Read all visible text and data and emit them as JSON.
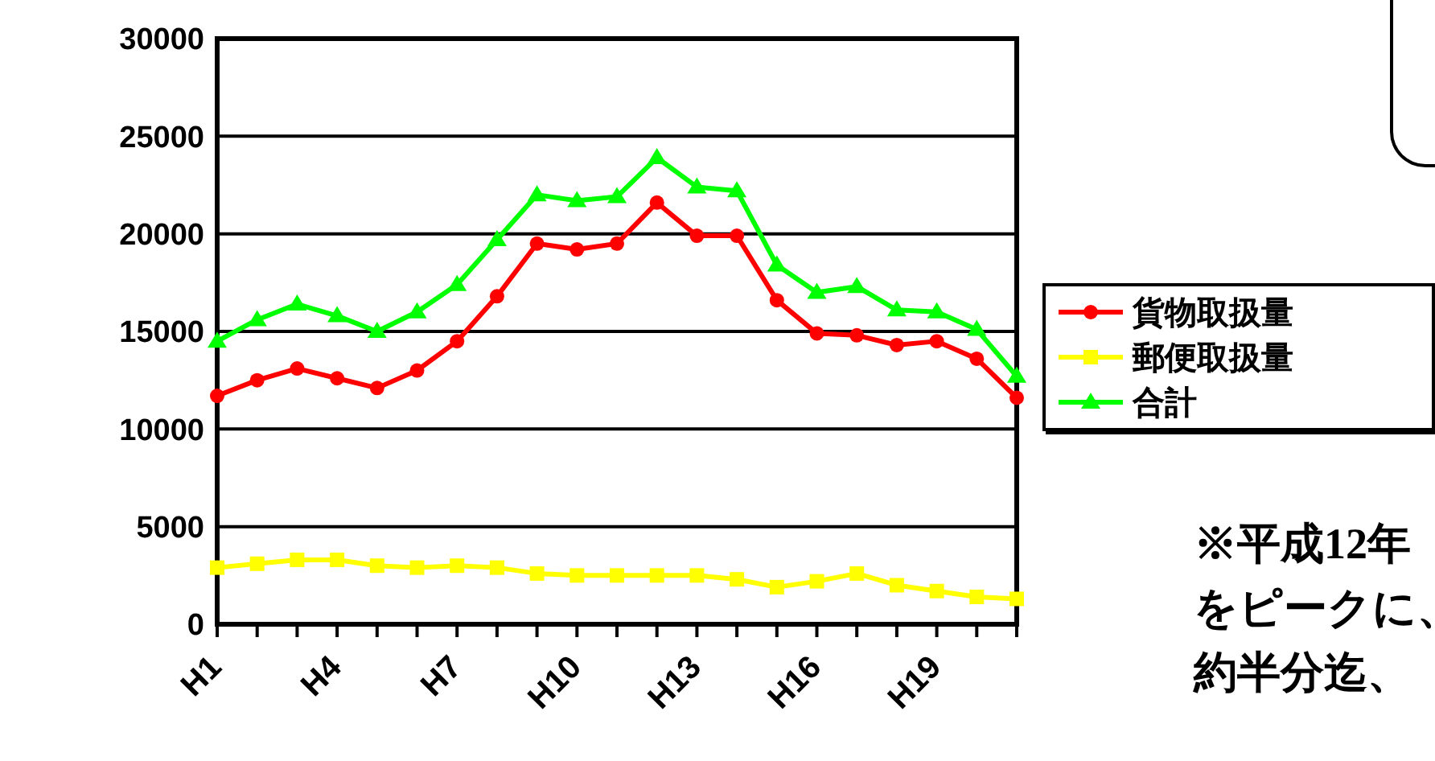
{
  "chart_data": {
    "type": "line",
    "categories": [
      "H1",
      null,
      null,
      "H4",
      null,
      null,
      "H7",
      null,
      null,
      "H10",
      null,
      null,
      "H13",
      null,
      null,
      "H16",
      null,
      null,
      "H19",
      null,
      null
    ],
    "series": [
      {
        "name": "貨物取扱量",
        "color": "#ff0000",
        "marker": "circle",
        "values": [
          11700,
          12500,
          13100,
          12600,
          12100,
          13000,
          14500,
          16800,
          19500,
          19200,
          19500,
          21600,
          19900,
          19900,
          16600,
          14900,
          14800,
          14300,
          14500,
          13600,
          11600
        ]
      },
      {
        "name": "郵便取扱量",
        "color": "#ffff00",
        "marker": "square",
        "values": [
          2900,
          3100,
          3300,
          3300,
          3000,
          2900,
          3000,
          2900,
          2600,
          2500,
          2500,
          2500,
          2500,
          2300,
          1900,
          2200,
          2600,
          2000,
          1700,
          1400,
          1300
        ]
      },
      {
        "name": "合計",
        "color": "#00ff00",
        "marker": "triangle",
        "values": [
          14500,
          15600,
          16400,
          15800,
          15000,
          16000,
          17400,
          19700,
          22000,
          21700,
          21900,
          23900,
          22400,
          22200,
          18400,
          17000,
          17300,
          16100,
          16000,
          15100,
          12700
        ]
      }
    ],
    "ylim": [
      0,
      30000
    ],
    "yticks": [
      0,
      5000,
      10000,
      15000,
      20000,
      25000,
      30000
    ],
    "grid": "y",
    "legend": "right",
    "annotations": [
      "※平成12年",
      "をピークに、",
      "約半分迄、"
    ]
  }
}
